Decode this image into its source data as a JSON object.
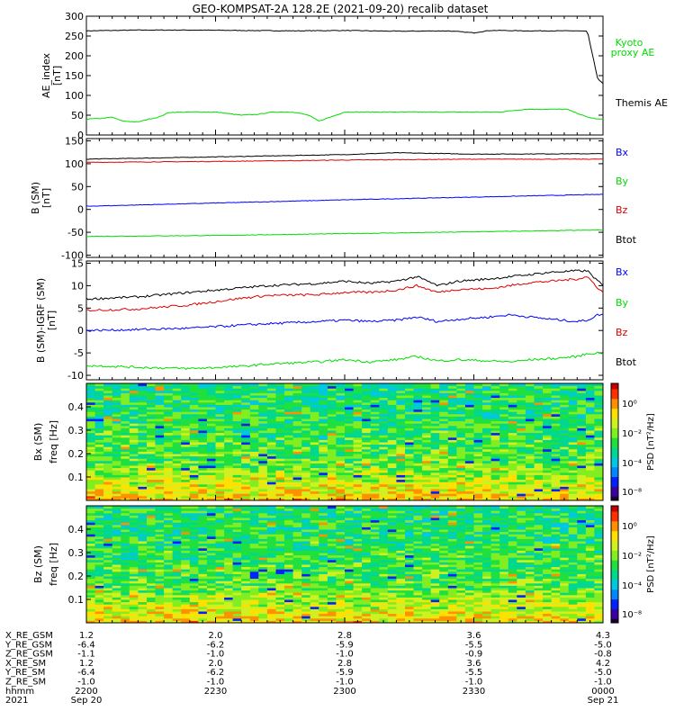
{
  "title": "GEO-KOMPSAT-2A 128.2E (2021-09-20) recalib dataset",
  "colors": {
    "black": "#000000",
    "blue": "#0000ff",
    "green": "#00dd00",
    "red": "#dd0000",
    "orange_text": "#ff3300",
    "panel_border": "#000000"
  },
  "chart_data": [
    {
      "type": "line",
      "panel": "ae",
      "ylabel": [
        "AE_index",
        "[nT]"
      ],
      "ylim": [
        0,
        300
      ],
      "yticks": [
        0,
        50,
        100,
        150,
        200,
        250,
        300
      ],
      "legend": [
        {
          "label": "Kyoto proxy AE",
          "lines": [
            "Kyoto",
            "proxy AE"
          ],
          "color": "#00dd00"
        },
        {
          "label": "Themis AE",
          "lines": [
            "Themis AE"
          ],
          "color": "#000000"
        }
      ],
      "series": [
        {
          "name": "Themis AE",
          "color": "#000000",
          "x": [
            0,
            0.05,
            0.1,
            0.2,
            0.3,
            0.4,
            0.5,
            0.6,
            0.7,
            0.75,
            0.78,
            0.8,
            0.85,
            0.9,
            0.95,
            0.97,
            0.975,
            0.99,
            1.0
          ],
          "y": [
            263,
            264,
            265,
            265,
            264,
            263,
            264,
            262,
            263,
            258,
            264,
            264,
            263,
            263,
            263,
            262,
            230,
            140,
            130
          ]
        },
        {
          "name": "Kyoto proxy AE",
          "color": "#00dd00",
          "x": [
            0,
            0.03,
            0.05,
            0.07,
            0.1,
            0.12,
            0.14,
            0.16,
            0.2,
            0.25,
            0.3,
            0.33,
            0.36,
            0.4,
            0.43,
            0.45,
            0.5,
            0.55,
            0.6,
            0.65,
            0.7,
            0.75,
            0.8,
            0.85,
            0.9,
            0.93,
            0.95,
            0.97,
            0.99
          ],
          "y": [
            40,
            42,
            45,
            35,
            33,
            40,
            45,
            57,
            58,
            58,
            50,
            52,
            58,
            58,
            50,
            35,
            58,
            58,
            58,
            58,
            58,
            58,
            58,
            65,
            65,
            65,
            55,
            45,
            40
          ]
        }
      ]
    },
    {
      "type": "line",
      "panel": "b_sm",
      "ylabel": [
        "B (SM)",
        "[nT]"
      ],
      "ylim": [
        -105,
        155
      ],
      "yticks": [
        -100,
        -50,
        0,
        50,
        100,
        150
      ],
      "legend": [
        {
          "label": "Bx",
          "lines": [
            "Bx"
          ],
          "color": "#0000ff"
        },
        {
          "label": "By",
          "lines": [
            "By"
          ],
          "color": "#00dd00"
        },
        {
          "label": "Bz",
          "lines": [
            "Bz"
          ],
          "color": "#dd0000"
        },
        {
          "label": "Btot",
          "lines": [
            "Btot"
          ],
          "color": "#000000"
        }
      ],
      "series": [
        {
          "name": "Btot",
          "color": "#000000",
          "x": [
            0,
            0.25,
            0.5,
            0.6,
            0.75,
            1.0
          ],
          "y": [
            110,
            115,
            120,
            124,
            121,
            122
          ]
        },
        {
          "name": "Bz",
          "color": "#dd0000",
          "x": [
            0,
            0.25,
            0.5,
            0.75,
            1.0
          ],
          "y": [
            103,
            105,
            108,
            110,
            110
          ]
        },
        {
          "name": "Bx",
          "color": "#0000ff",
          "x": [
            0,
            0.25,
            0.5,
            0.75,
            1.0
          ],
          "y": [
            7,
            14,
            21,
            27,
            33
          ]
        },
        {
          "name": "By",
          "color": "#00dd00",
          "x": [
            0,
            0.25,
            0.5,
            0.75,
            1.0
          ],
          "y": [
            -59,
            -57,
            -53,
            -49,
            -45
          ]
        }
      ]
    },
    {
      "type": "line",
      "panel": "b_igrf",
      "ylabel": [
        "B (SM)-IGRF (SM)",
        "[nT]"
      ],
      "ylim": [
        -11,
        15.5
      ],
      "yticks": [
        -10,
        -5,
        0,
        5,
        10,
        15
      ],
      "legend": [
        {
          "label": "Bx",
          "lines": [
            "Bx"
          ],
          "color": "#0000ff"
        },
        {
          "label": "By",
          "lines": [
            "By"
          ],
          "color": "#00dd00"
        },
        {
          "label": "Bz",
          "lines": [
            "Bz"
          ],
          "color": "#dd0000"
        },
        {
          "label": "Btot",
          "lines": [
            "Btot"
          ],
          "color": "#000000"
        }
      ],
      "series": [
        {
          "name": "Btot",
          "color": "#000000",
          "x": [
            0,
            0.1,
            0.2,
            0.3,
            0.35,
            0.45,
            0.5,
            0.55,
            0.6,
            0.64,
            0.68,
            0.72,
            0.78,
            0.82,
            0.86,
            0.9,
            0.95,
            0.97,
            0.99,
            1.0
          ],
          "y": [
            7,
            7.5,
            8.5,
            9.5,
            10,
            10.5,
            11,
            10.5,
            11,
            12,
            10,
            11,
            11.5,
            12,
            12.5,
            13,
            13.3,
            13.3,
            11,
            10
          ]
        },
        {
          "name": "Bz",
          "color": "#dd0000",
          "x": [
            0,
            0.1,
            0.2,
            0.3,
            0.35,
            0.45,
            0.5,
            0.55,
            0.6,
            0.64,
            0.68,
            0.72,
            0.78,
            0.82,
            0.86,
            0.9,
            0.95,
            0.97,
            0.99,
            1.0
          ],
          "y": [
            4.5,
            4.8,
            5.7,
            7.2,
            7.8,
            8,
            8.5,
            8.5,
            9,
            10,
            8.5,
            9.2,
            9.3,
            10,
            10.7,
            11,
            11.5,
            12,
            9.5,
            8.5
          ]
        },
        {
          "name": "Bx",
          "color": "#0000ff",
          "x": [
            0,
            0.1,
            0.2,
            0.3,
            0.35,
            0.45,
            0.5,
            0.55,
            0.6,
            0.64,
            0.68,
            0.72,
            0.78,
            0.82,
            0.86,
            0.9,
            0.95,
            0.97,
            0.99,
            1.0
          ],
          "y": [
            0,
            0.2,
            0.5,
            1.2,
            1.5,
            2,
            2.3,
            2,
            2.3,
            3,
            2,
            2.5,
            3,
            3.5,
            3,
            2.5,
            2,
            2.3,
            3.5,
            3.6
          ]
        },
        {
          "name": "By",
          "color": "#00dd00",
          "x": [
            0,
            0.1,
            0.2,
            0.3,
            0.35,
            0.45,
            0.5,
            0.55,
            0.6,
            0.64,
            0.68,
            0.72,
            0.78,
            0.82,
            0.86,
            0.9,
            0.95,
            0.97,
            0.99,
            1.0
          ],
          "y": [
            -7.8,
            -8.2,
            -8.5,
            -8,
            -7.5,
            -7,
            -6.5,
            -7,
            -6.5,
            -5.8,
            -6.8,
            -6.5,
            -6.8,
            -7,
            -6.5,
            -6.3,
            -5.8,
            -5.2,
            -5,
            -5
          ]
        }
      ]
    },
    {
      "type": "heatmap",
      "panel": "spec_bx",
      "ylabel": [
        "Bx (SM)",
        "freq [Hz]"
      ],
      "ylim": [
        0,
        0.5
      ],
      "yticks": [
        0.1,
        0.2,
        0.3,
        0.4
      ],
      "colorbar": {
        "label": "PSD [nT²/Hz]",
        "ticks": [
          "10⁰",
          "10⁻²",
          "10⁻⁴",
          "10⁻⁸"
        ]
      }
    },
    {
      "type": "heatmap",
      "panel": "spec_bz",
      "ylabel": [
        "Bz (SM)",
        "freq [Hz]"
      ],
      "ylim": [
        0,
        0.5
      ],
      "yticks": [
        0.1,
        0.2,
        0.3,
        0.4
      ],
      "colorbar": {
        "label": "PSD [nT²/Hz]",
        "ticks": [
          "10⁰",
          "10⁻²",
          "10⁻⁴",
          "10⁻⁸"
        ]
      }
    }
  ],
  "orbit_table": {
    "row_labels": [
      "X_RE_GSM",
      "Y_RE_GSM",
      "Z_RE_GSM",
      "X_RE_SM",
      "Y_RE_SM",
      "Z_RE_SM",
      "hhmm",
      "2021"
    ],
    "columns": [
      [
        "1.2",
        "-6.4",
        "-1.1",
        "1.2",
        "-6.4",
        "-1.0",
        "2200",
        "Sep 20"
      ],
      [
        "2.0",
        "-6.2",
        "-1.0",
        "2.0",
        "-6.2",
        "-1.0",
        "2230",
        ""
      ],
      [
        "2.8",
        "-5.9",
        "-1.0",
        "2.8",
        "-5.9",
        "-1.0",
        "2300",
        ""
      ],
      [
        "3.6",
        "-5.5",
        "-0.9",
        "3.6",
        "-5.5",
        "-1.0",
        "2330",
        ""
      ],
      [
        "4.3",
        "-5.0",
        "-0.8",
        "4.2",
        "-5.0",
        "-1.0",
        "0000",
        "Sep 21"
      ]
    ]
  }
}
